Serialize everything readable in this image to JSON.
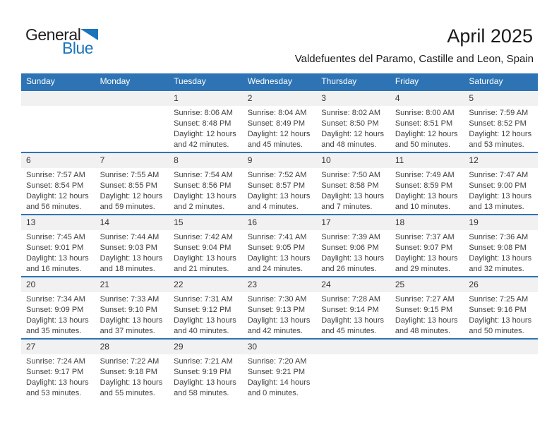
{
  "logo": {
    "text_top": "General",
    "text_bottom": "Blue"
  },
  "title": "April 2025",
  "subtitle": "Valdefuentes del Paramo, Castille and Leon, Spain",
  "colors": {
    "header_blue": "#2e74b5",
    "row_separator_blue": "#2e74b5",
    "number_strip_gray": "#f1f1f1",
    "logo_blue": "#1c75bc",
    "logo_black": "#231f20",
    "detail_text": "#404040"
  },
  "weekdays": [
    "Sunday",
    "Monday",
    "Tuesday",
    "Wednesday",
    "Thursday",
    "Friday",
    "Saturday"
  ],
  "weeks": [
    [
      null,
      null,
      {
        "day": "1",
        "sunrise": "Sunrise: 8:06 AM",
        "sunset": "Sunset: 8:48 PM",
        "daylight": "Daylight: 12 hours and 42 minutes."
      },
      {
        "day": "2",
        "sunrise": "Sunrise: 8:04 AM",
        "sunset": "Sunset: 8:49 PM",
        "daylight": "Daylight: 12 hours and 45 minutes."
      },
      {
        "day": "3",
        "sunrise": "Sunrise: 8:02 AM",
        "sunset": "Sunset: 8:50 PM",
        "daylight": "Daylight: 12 hours and 48 minutes."
      },
      {
        "day": "4",
        "sunrise": "Sunrise: 8:00 AM",
        "sunset": "Sunset: 8:51 PM",
        "daylight": "Daylight: 12 hours and 50 minutes."
      },
      {
        "day": "5",
        "sunrise": "Sunrise: 7:59 AM",
        "sunset": "Sunset: 8:52 PM",
        "daylight": "Daylight: 12 hours and 53 minutes."
      }
    ],
    [
      {
        "day": "6",
        "sunrise": "Sunrise: 7:57 AM",
        "sunset": "Sunset: 8:54 PM",
        "daylight": "Daylight: 12 hours and 56 minutes."
      },
      {
        "day": "7",
        "sunrise": "Sunrise: 7:55 AM",
        "sunset": "Sunset: 8:55 PM",
        "daylight": "Daylight: 12 hours and 59 minutes."
      },
      {
        "day": "8",
        "sunrise": "Sunrise: 7:54 AM",
        "sunset": "Sunset: 8:56 PM",
        "daylight": "Daylight: 13 hours and 2 minutes."
      },
      {
        "day": "9",
        "sunrise": "Sunrise: 7:52 AM",
        "sunset": "Sunset: 8:57 PM",
        "daylight": "Daylight: 13 hours and 4 minutes."
      },
      {
        "day": "10",
        "sunrise": "Sunrise: 7:50 AM",
        "sunset": "Sunset: 8:58 PM",
        "daylight": "Daylight: 13 hours and 7 minutes."
      },
      {
        "day": "11",
        "sunrise": "Sunrise: 7:49 AM",
        "sunset": "Sunset: 8:59 PM",
        "daylight": "Daylight: 13 hours and 10 minutes."
      },
      {
        "day": "12",
        "sunrise": "Sunrise: 7:47 AM",
        "sunset": "Sunset: 9:00 PM",
        "daylight": "Daylight: 13 hours and 13 minutes."
      }
    ],
    [
      {
        "day": "13",
        "sunrise": "Sunrise: 7:45 AM",
        "sunset": "Sunset: 9:01 PM",
        "daylight": "Daylight: 13 hours and 16 minutes."
      },
      {
        "day": "14",
        "sunrise": "Sunrise: 7:44 AM",
        "sunset": "Sunset: 9:03 PM",
        "daylight": "Daylight: 13 hours and 18 minutes."
      },
      {
        "day": "15",
        "sunrise": "Sunrise: 7:42 AM",
        "sunset": "Sunset: 9:04 PM",
        "daylight": "Daylight: 13 hours and 21 minutes."
      },
      {
        "day": "16",
        "sunrise": "Sunrise: 7:41 AM",
        "sunset": "Sunset: 9:05 PM",
        "daylight": "Daylight: 13 hours and 24 minutes."
      },
      {
        "day": "17",
        "sunrise": "Sunrise: 7:39 AM",
        "sunset": "Sunset: 9:06 PM",
        "daylight": "Daylight: 13 hours and 26 minutes."
      },
      {
        "day": "18",
        "sunrise": "Sunrise: 7:37 AM",
        "sunset": "Sunset: 9:07 PM",
        "daylight": "Daylight: 13 hours and 29 minutes."
      },
      {
        "day": "19",
        "sunrise": "Sunrise: 7:36 AM",
        "sunset": "Sunset: 9:08 PM",
        "daylight": "Daylight: 13 hours and 32 minutes."
      }
    ],
    [
      {
        "day": "20",
        "sunrise": "Sunrise: 7:34 AM",
        "sunset": "Sunset: 9:09 PM",
        "daylight": "Daylight: 13 hours and 35 minutes."
      },
      {
        "day": "21",
        "sunrise": "Sunrise: 7:33 AM",
        "sunset": "Sunset: 9:10 PM",
        "daylight": "Daylight: 13 hours and 37 minutes."
      },
      {
        "day": "22",
        "sunrise": "Sunrise: 7:31 AM",
        "sunset": "Sunset: 9:12 PM",
        "daylight": "Daylight: 13 hours and 40 minutes."
      },
      {
        "day": "23",
        "sunrise": "Sunrise: 7:30 AM",
        "sunset": "Sunset: 9:13 PM",
        "daylight": "Daylight: 13 hours and 42 minutes."
      },
      {
        "day": "24",
        "sunrise": "Sunrise: 7:28 AM",
        "sunset": "Sunset: 9:14 PM",
        "daylight": "Daylight: 13 hours and 45 minutes."
      },
      {
        "day": "25",
        "sunrise": "Sunrise: 7:27 AM",
        "sunset": "Sunset: 9:15 PM",
        "daylight": "Daylight: 13 hours and 48 minutes."
      },
      {
        "day": "26",
        "sunrise": "Sunrise: 7:25 AM",
        "sunset": "Sunset: 9:16 PM",
        "daylight": "Daylight: 13 hours and 50 minutes."
      }
    ],
    [
      {
        "day": "27",
        "sunrise": "Sunrise: 7:24 AM",
        "sunset": "Sunset: 9:17 PM",
        "daylight": "Daylight: 13 hours and 53 minutes."
      },
      {
        "day": "28",
        "sunrise": "Sunrise: 7:22 AM",
        "sunset": "Sunset: 9:18 PM",
        "daylight": "Daylight: 13 hours and 55 minutes."
      },
      {
        "day": "29",
        "sunrise": "Sunrise: 7:21 AM",
        "sunset": "Sunset: 9:19 PM",
        "daylight": "Daylight: 13 hours and 58 minutes."
      },
      {
        "day": "30",
        "sunrise": "Sunrise: 7:20 AM",
        "sunset": "Sunset: 9:21 PM",
        "daylight": "Daylight: 14 hours and 0 minutes."
      },
      null,
      null,
      null
    ]
  ]
}
